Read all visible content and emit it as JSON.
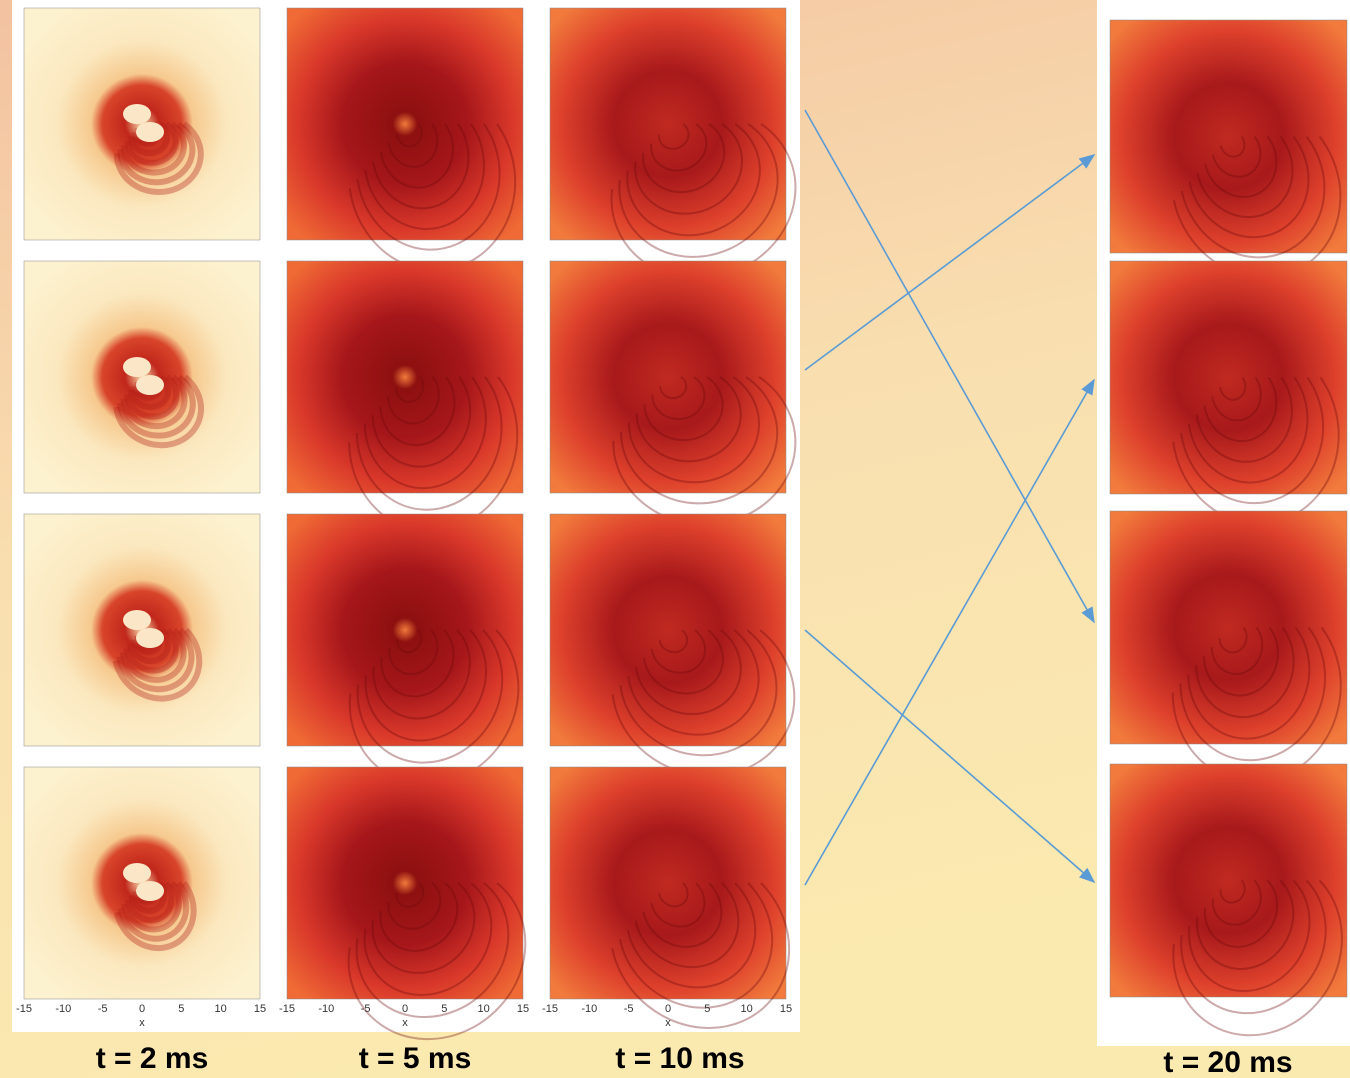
{
  "columns": [
    {
      "label": "t = 2 ms"
    },
    {
      "label": "t = 5 ms"
    },
    {
      "label": "t = 10 ms"
    },
    {
      "label": "t = 20 ms"
    }
  ],
  "x_axis": {
    "ticks": [
      -15,
      -10,
      -5,
      0,
      5,
      10,
      15
    ],
    "label": "x"
  }
}
